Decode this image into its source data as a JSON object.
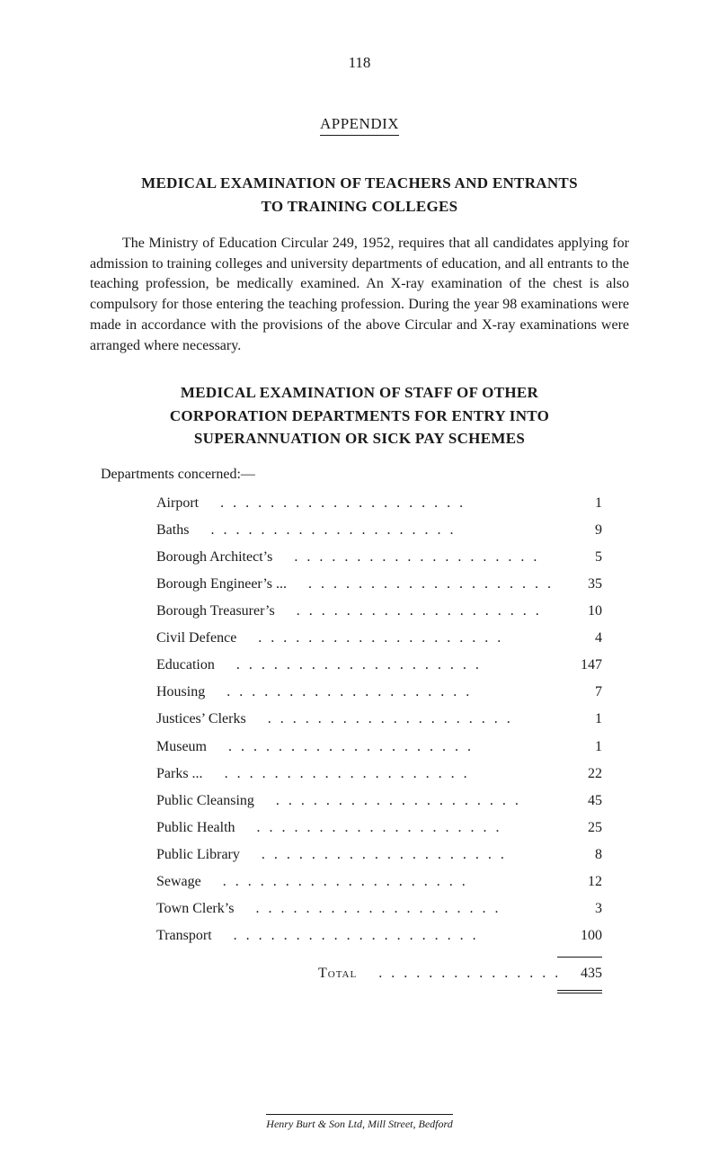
{
  "page_number": "118",
  "appendix_label": "APPENDIX",
  "main_title_line1": "MEDICAL EXAMINATION OF TEACHERS AND ENTRANTS",
  "main_title_line2": "TO TRAINING COLLEGES",
  "paragraph": "The Ministry of Education Circular 249, 1952, requires that all can­didates applying for admission to training colleges and university departments of education, and all entrants to the teaching profession, be medically examined. An X-ray examination of the chest is also compulsory for those entering the teaching profession. During the year 98 examinations were made in accordance with the provisions of the above Circular and X-ray examinations were arranged where necessary.",
  "sub_title_line1": "MEDICAL EXAMINATION OF STAFF OF OTHER",
  "sub_title_line2": "CORPORATION DEPARTMENTS FOR ENTRY INTO",
  "sub_title_line3": "SUPERANNUATION OR SICK PAY SCHEMES",
  "dept_intro": "Departments concerned:—",
  "departments": [
    {
      "label": "Airport",
      "value": "1"
    },
    {
      "label": "Baths",
      "value": "9"
    },
    {
      "label": "Borough Architect’s",
      "value": "5"
    },
    {
      "label": "Borough Engineer’s ...",
      "value": "35"
    },
    {
      "label": "Borough Treasurer’s",
      "value": "10"
    },
    {
      "label": "Civil Defence",
      "value": "4"
    },
    {
      "label": "Education",
      "value": "147"
    },
    {
      "label": "Housing",
      "value": "7"
    },
    {
      "label": "Justices’ Clerks",
      "value": "1"
    },
    {
      "label": "Museum",
      "value": "1"
    },
    {
      "label": "Parks ...",
      "value": "22"
    },
    {
      "label": "Public Cleansing",
      "value": "45"
    },
    {
      "label": "Public Health",
      "value": "25"
    },
    {
      "label": "Public Library",
      "value": "8"
    },
    {
      "label": "Sewage",
      "value": "12"
    },
    {
      "label": "Town Clerk’s",
      "value": "3"
    },
    {
      "label": "Transport",
      "value": "100"
    }
  ],
  "total_label": "Total",
  "total_value": "435",
  "footer": "Henry Burt & Son Ltd, Mill Street, Bedford",
  "dots_fill": "...................."
}
